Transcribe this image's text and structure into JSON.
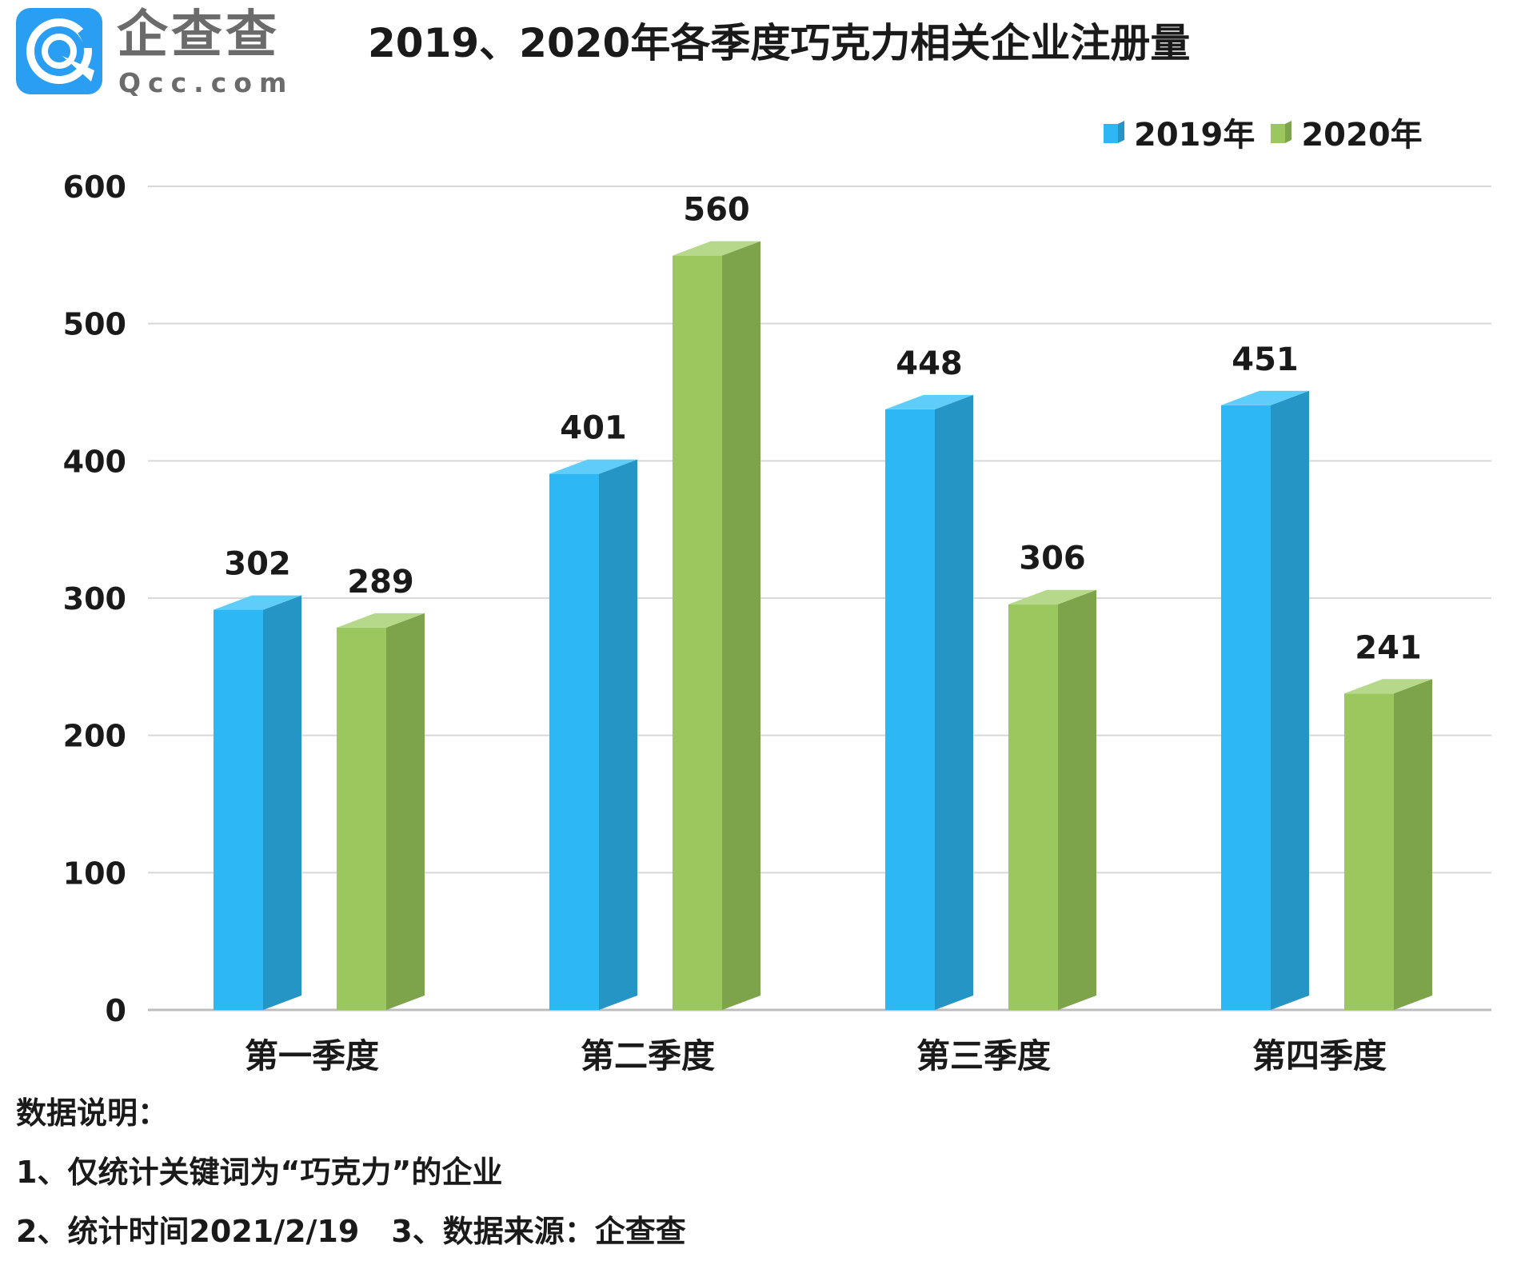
{
  "logo": {
    "name_cn": "企查查",
    "name_en": "Qcc.com",
    "colors": {
      "bg": "#2a9ef2",
      "mark": "#ffffff"
    }
  },
  "colors": {
    "series_2019_front": "#2db8f5",
    "series_2019_side": "#2595c6",
    "series_2019_top": "#5fcdfa",
    "series_2020_front": "#9bc85e",
    "series_2020_side": "#7da34b",
    "series_2020_top": "#b5d88a",
    "grid": "#d8d8d8",
    "axis": "#bdbdbd"
  },
  "chart_data": {
    "type": "bar",
    "title": "2019、2020年各季度巧克力相关企业注册量",
    "categories": [
      "第一季度",
      "第二季度",
      "第三季度",
      "第四季度"
    ],
    "series": [
      {
        "name": "2019年",
        "values": [
          302,
          401,
          448,
          451
        ]
      },
      {
        "name": "2020年",
        "values": [
          289,
          560,
          306,
          241
        ]
      }
    ],
    "xlabel": "",
    "ylabel": "",
    "ylim": [
      0,
      600
    ],
    "yticks": [
      0,
      100,
      200,
      300,
      400,
      500,
      600
    ],
    "grid": true,
    "legend_position": "top-right",
    "bar_style": "3d"
  },
  "notes": {
    "heading": "数据说明：",
    "line1": "1、仅统计关键词为“巧克力”的企业",
    "line2a": "2、统计时间2021/2/19",
    "line2b": "3、数据来源：企查查"
  }
}
